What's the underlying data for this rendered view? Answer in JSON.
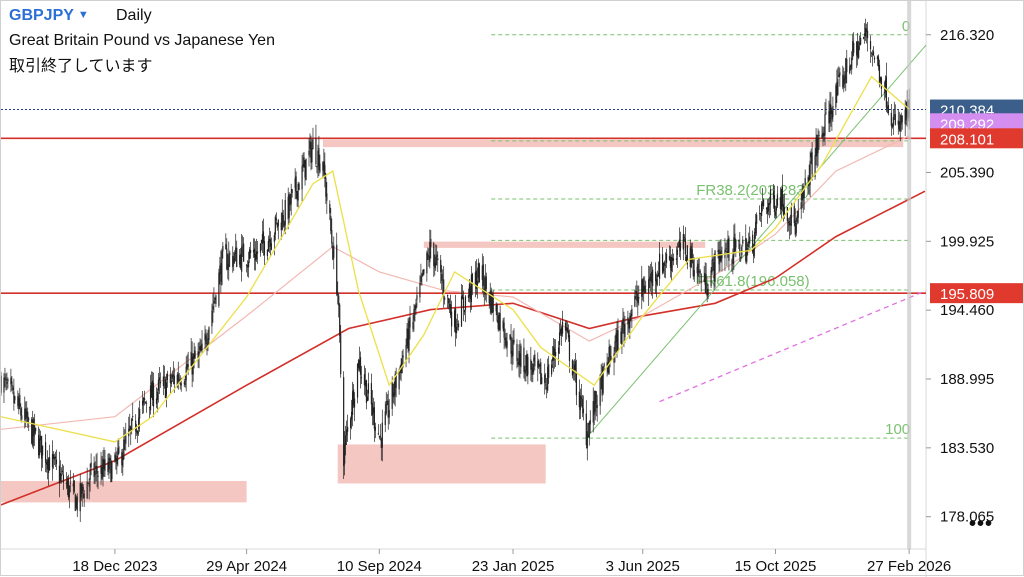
{
  "header": {
    "symbol": "GBPJPY",
    "timeframe": "Daily",
    "pair_name": "Great Britain Pound vs Japanese Yen",
    "status": "取引終了しています"
  },
  "more_menu_glyph": "•••",
  "colors": {
    "candle": "#222222",
    "ma_fast": "#ece047",
    "ma_mid": "#f2b9b2",
    "ma_slow": "#d3302a",
    "projection": "#e06fe0",
    "fib": "#79c26e",
    "zone": "#f5c7c2",
    "resistance": "#d3302a",
    "last_price_bg": "#3b5f8a",
    "purple_label_bg": "#d48ef0",
    "red_label_bg": "#e03a2f"
  },
  "chart_data": {
    "type": "candlestick",
    "symbol": "GBPJPY",
    "timeframe": "Daily",
    "y_range": [
      175.5,
      219.0
    ],
    "y_ticks": [
      "216.320",
      "205.390",
      "199.925",
      "194.460",
      "188.995",
      "183.530",
      "178.065"
    ],
    "x_range": [
      "2023-08-25",
      "2026-03-16"
    ],
    "x_ticks": [
      {
        "label": "18 Dec 2023",
        "date": "2023-12-18"
      },
      {
        "label": "29 Apr 2024",
        "date": "2024-04-29"
      },
      {
        "label": "10 Sep 2024",
        "date": "2024-09-10"
      },
      {
        "label": "23 Jan 2025",
        "date": "2025-01-23"
      },
      {
        "label": "3 Jun 2025",
        "date": "2025-06-03"
      },
      {
        "label": "15 Oct 2025",
        "date": "2025-10-15"
      },
      {
        "label": "27 Feb 2026",
        "date": "2026-02-27"
      }
    ],
    "price_path": [
      [
        "2023-08-25",
        189.0
      ],
      [
        "2023-10-01",
        184.0
      ],
      [
        "2023-11-10",
        179.2
      ],
      [
        "2023-11-25",
        181.5
      ],
      [
        "2023-12-18",
        182.0
      ],
      [
        "2024-01-20",
        187.5
      ],
      [
        "2024-02-25",
        189.5
      ],
      [
        "2024-03-15",
        191.0
      ],
      [
        "2024-04-05",
        198.5
      ],
      [
        "2024-05-10",
        199.0
      ],
      [
        "2024-06-10",
        202.5
      ],
      [
        "2024-07-05",
        207.5
      ],
      [
        "2024-07-15",
        206.0
      ],
      [
        "2024-07-30",
        196.0
      ],
      [
        "2024-08-05",
        183.0
      ],
      [
        "2024-08-20",
        190.5
      ],
      [
        "2024-09-11",
        184.2
      ],
      [
        "2024-10-15",
        194.0
      ],
      [
        "2024-11-01",
        199.5
      ],
      [
        "2024-11-25",
        193.5
      ],
      [
        "2024-12-20",
        197.5
      ],
      [
        "2025-01-05",
        194.5
      ],
      [
        "2025-01-25",
        191.0
      ],
      [
        "2025-02-25",
        188.8
      ],
      [
        "2025-03-15",
        193.5
      ],
      [
        "2025-04-07",
        184.7
      ],
      [
        "2025-04-30",
        190.5
      ],
      [
        "2025-05-25",
        195.0
      ],
      [
        "2025-06-20",
        198.0
      ],
      [
        "2025-07-15",
        199.5
      ],
      [
        "2025-08-05",
        196.5
      ],
      [
        "2025-08-20",
        199.0
      ],
      [
        "2025-09-20",
        199.5
      ],
      [
        "2025-10-01",
        202.5
      ],
      [
        "2025-10-20",
        203.5
      ],
      [
        "2025-11-05",
        201.0
      ],
      [
        "2025-11-20",
        206.0
      ],
      [
        "2025-12-10",
        210.5
      ],
      [
        "2025-12-30",
        214.5
      ],
      [
        "2026-01-15",
        216.4
      ],
      [
        "2026-02-01",
        212.5
      ],
      [
        "2026-02-14",
        208.6
      ],
      [
        "2026-02-27",
        210.3
      ]
    ],
    "ma_slow": [
      [
        "2023-08-25",
        179.0
      ],
      [
        "2023-12-18",
        182.5
      ],
      [
        "2024-04-29",
        188.5
      ],
      [
        "2024-08-10",
        193.0
      ],
      [
        "2024-11-01",
        194.5
      ],
      [
        "2025-01-23",
        195.0
      ],
      [
        "2025-04-10",
        193.0
      ],
      [
        "2025-06-03",
        194.0
      ],
      [
        "2025-08-15",
        195.0
      ],
      [
        "2025-10-15",
        197.0
      ],
      [
        "2025-12-15",
        200.3
      ],
      [
        "2026-03-15",
        203.9
      ]
    ],
    "ma_mid": [
      [
        "2023-08-25",
        185.0
      ],
      [
        "2023-12-18",
        186.0
      ],
      [
        "2024-04-29",
        194.0
      ],
      [
        "2024-07-25",
        199.5
      ],
      [
        "2024-09-10",
        197.5
      ],
      [
        "2024-11-15",
        196.0
      ],
      [
        "2025-01-23",
        195.5
      ],
      [
        "2025-04-10",
        192.0
      ],
      [
        "2025-06-03",
        194.0
      ],
      [
        "2025-08-20",
        197.5
      ],
      [
        "2025-10-15",
        200.5
      ],
      [
        "2025-12-15",
        205.5
      ],
      [
        "2026-02-27",
        208.3
      ]
    ],
    "ma_fast": [
      [
        "2023-08-25",
        186.0
      ],
      [
        "2023-12-18",
        184.0
      ],
      [
        "2024-01-25",
        186.0
      ],
      [
        "2024-04-29",
        195.5
      ],
      [
        "2024-07-05",
        204.5
      ],
      [
        "2024-07-25",
        205.5
      ],
      [
        "2024-08-20",
        196.0
      ],
      [
        "2024-09-20",
        188.5
      ],
      [
        "2024-10-25",
        192.5
      ],
      [
        "2024-11-25",
        197.5
      ],
      [
        "2025-01-23",
        194.5
      ],
      [
        "2025-02-20",
        191.5
      ],
      [
        "2025-04-15",
        188.5
      ],
      [
        "2025-06-03",
        194.0
      ],
      [
        "2025-07-20",
        198.5
      ],
      [
        "2025-09-20",
        199.2
      ],
      [
        "2025-10-15",
        201.0
      ],
      [
        "2025-12-01",
        206.0
      ],
      [
        "2026-01-20",
        213.0
      ],
      [
        "2026-02-27",
        210.4
      ]
    ],
    "projection_line": [
      [
        "2025-06-20",
        187.2
      ],
      [
        "2026-03-16",
        196.0
      ]
    ],
    "trend_line": [
      [
        "2025-04-07",
        184.3
      ],
      [
        "2026-03-16",
        215.5
      ]
    ],
    "zones": [
      {
        "from": "2023-08-25",
        "to": "2024-04-29",
        "y_low": 179.2,
        "y_high": 180.9
      },
      {
        "from": "2024-07-30",
        "to": "2025-02-25",
        "y_low": 180.7,
        "y_high": 183.8
      },
      {
        "from": "2024-10-25",
        "to": "2025-08-05",
        "y_low": 199.4,
        "y_high": 199.9
      },
      {
        "from": "2024-07-15",
        "to": "2026-02-21",
        "y_low": 207.4,
        "y_high": 208.0
      }
    ],
    "horizontal_levels": [
      {
        "value": 208.101,
        "label": "208.101",
        "style": "red-solid"
      },
      {
        "value": 195.809,
        "label": "195.809",
        "style": "red-solid"
      },
      {
        "value": 210.384,
        "label": "210.384",
        "style": "last-price"
      },
      {
        "value": 209.292,
        "label": "209.292",
        "style": "purple"
      }
    ],
    "fibonacci": {
      "from": "2025-01-01",
      "to": "2026-02-27",
      "levels": [
        {
          "label": "0",
          "value": 216.32
        },
        {
          "label": "",
          "value": 207.9
        },
        {
          "label": "FR38.2(203.283)",
          "value": 203.283
        },
        {
          "label": "",
          "value": 200.0
        },
        {
          "label": "FR61.8(196.058)",
          "value": 196.058
        },
        {
          "label": "100",
          "value": 184.3
        }
      ]
    }
  }
}
